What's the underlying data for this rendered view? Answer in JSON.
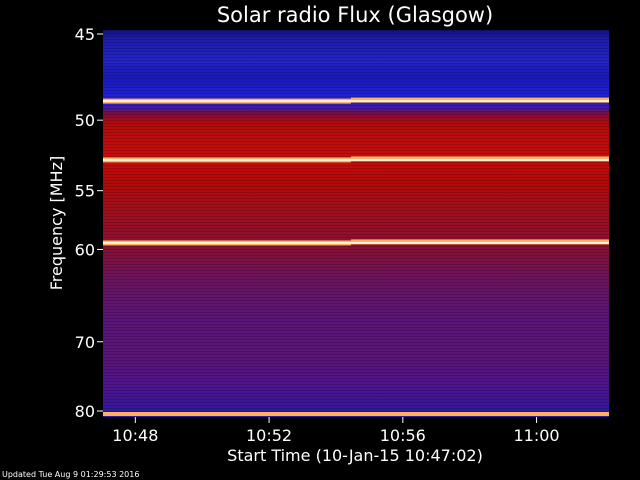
{
  "chart_data": {
    "type": "heatmap",
    "title": "Solar radio Flux (Glasgow)",
    "ylabel": "Frequency [MHz]",
    "xlabel": "Start Time (10-Jan-15 10:47:02)",
    "y_ticks": [
      45,
      50,
      55,
      60,
      70,
      80
    ],
    "ylim": [
      45,
      80
    ],
    "y_scale": "reciprocal",
    "x_ticks": [
      "10:48",
      "10:52",
      "10:56",
      "11:00"
    ],
    "xlim": [
      "10:47:02",
      "11:02:10"
    ],
    "colormap": "blue-red-white",
    "bright_lines_mhz": [
      48.8,
      52.7,
      59.4
    ],
    "background_bands": [
      {
        "from": 45,
        "to": 52,
        "level": "blue"
      },
      {
        "from": 52,
        "to": 58,
        "level": "red"
      },
      {
        "from": 58,
        "to": 66,
        "level": "dark-red"
      },
      {
        "from": 66,
        "to": 80,
        "level": "purple"
      }
    ],
    "grid": false
  },
  "footer": {
    "updated": "Updated Tue Aug  9 01:29:53 2016"
  },
  "colors": {
    "background": "#000000",
    "text": "#ffffff"
  }
}
